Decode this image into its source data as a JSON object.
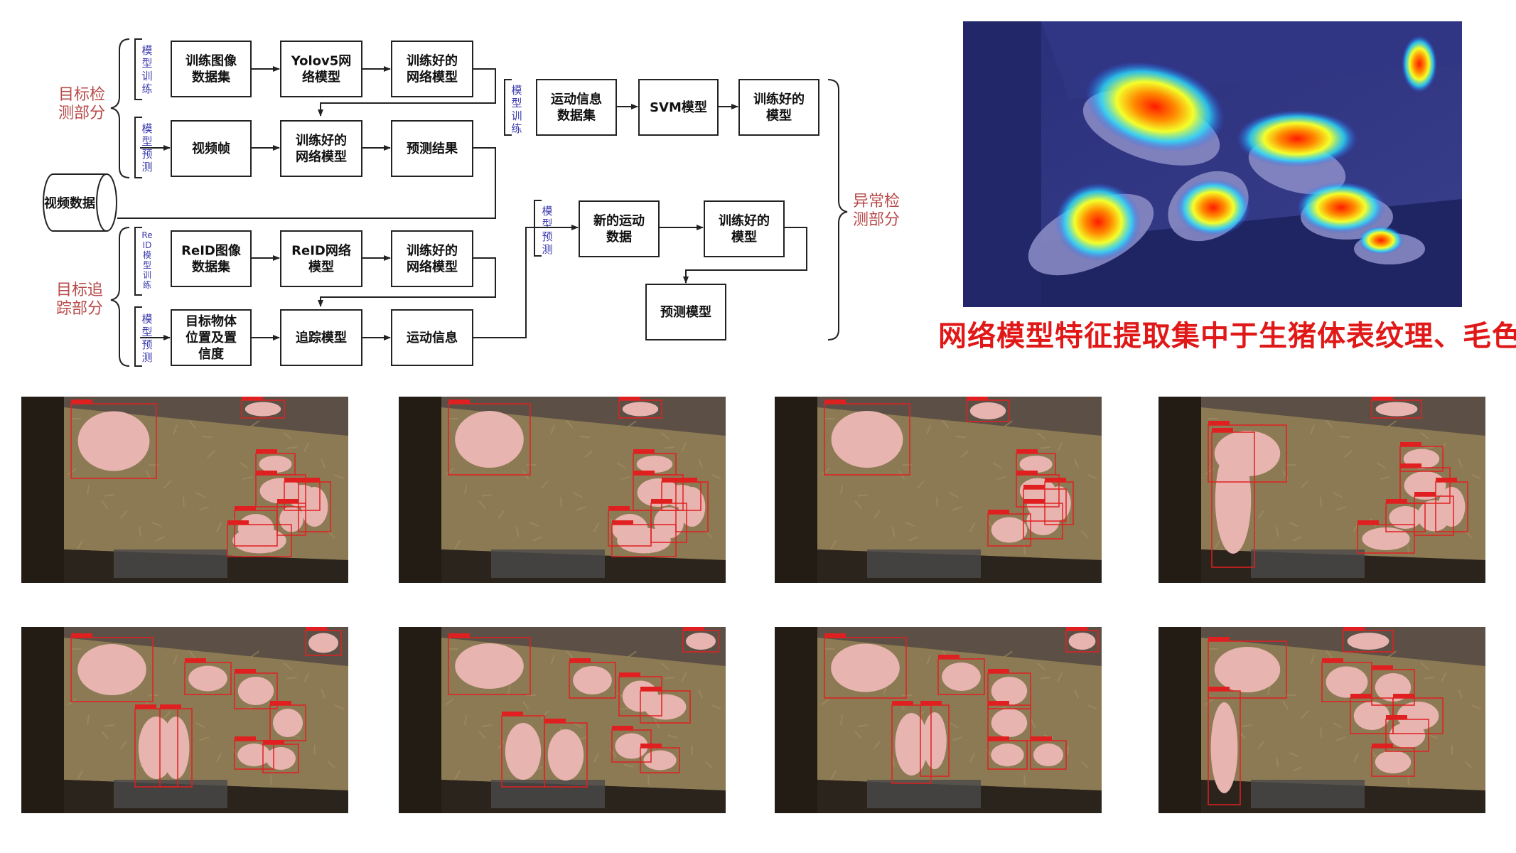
{
  "diagram": {
    "nodes": {
      "train_img": [
        "训练图像",
        "数据集"
      ],
      "yolo": [
        "Yolov5网",
        "络模型"
      ],
      "trained1": [
        "训练好的",
        "网络模型"
      ],
      "video_frame": [
        "视频帧"
      ],
      "trained2": [
        "训练好的",
        "网络模型"
      ],
      "pred_result": [
        "预测结果"
      ],
      "video_data": [
        "视频数据"
      ],
      "reid_img": [
        "ReID图像",
        "数据集"
      ],
      "reid_net": [
        "ReID网络",
        "模型"
      ],
      "trained3": [
        "训练好的",
        "网络模型"
      ],
      "target_pos": [
        "目标物体",
        "位置及置",
        "信度"
      ],
      "track_model": [
        "追踪模型"
      ],
      "motion_info": [
        "运动信息"
      ],
      "motion_dataset": [
        "运动信息",
        "数据集"
      ],
      "svm": [
        "SVM模型"
      ],
      "trained_model1": [
        "训练好的",
        "模型"
      ],
      "new_motion": [
        "新的运动",
        "数据"
      ],
      "trained_model2": [
        "训练好的",
        "模型"
      ],
      "predict_model": [
        "预测模型"
      ]
    },
    "vlabels": {
      "train1": "模型训练",
      "predict1": "模型预测",
      "reid_train": "ReID模型训练",
      "predict2": "模型预测",
      "train2": "模型训练",
      "predict3": "模型预测"
    },
    "sections": {
      "detection": [
        "目标检",
        "测部分"
      ],
      "tracking": [
        "目标追",
        "踪部分"
      ],
      "anomaly": [
        "异常检",
        "测部分"
      ]
    }
  },
  "caption": "网络模型特征提取集中于生猪体表纹理、毛色",
  "colors": {
    "section_label": "#b84a4a",
    "vertical_label": "#3a3ab0",
    "caption": "#e01818",
    "detection_box": "#e02020"
  },
  "icons": {
    "heatmap": "pig-pen-heatmap-image",
    "frames": "pig-pen-detection-frame"
  }
}
